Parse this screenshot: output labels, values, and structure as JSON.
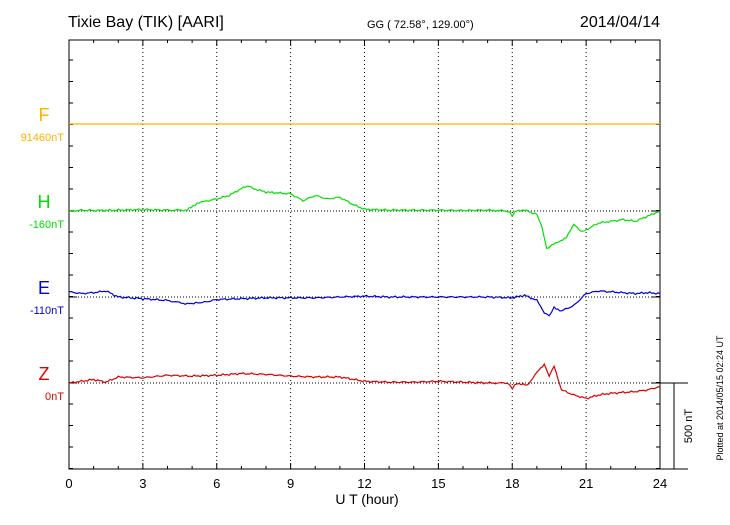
{
  "header": {
    "station": "Tixie Bay (TIK)  [AARI]",
    "coords": "GG ( 72.58°, 129.00°)",
    "date": "2014/04/14"
  },
  "footer": {
    "plotted_note": "Plotted at 2014/05/15 02:24 UT"
  },
  "scale_bar": {
    "label": "500 nT",
    "value_nT": 500
  },
  "colors": {
    "F": "#ffb000",
    "H": "#00e000",
    "E": "#0000dd",
    "Z": "#dd0000",
    "axis": "#000000",
    "grid": "#000000"
  },
  "chart_data": {
    "type": "line",
    "title": "Tixie Bay (TIK)  [AARI]",
    "xlabel": "U T (hour)",
    "ylabel": "",
    "xlim": [
      0,
      24
    ],
    "x_ticks": [
      "0",
      "3",
      "6",
      "9",
      "12",
      "15",
      "18",
      "21",
      "24"
    ],
    "grid": "dotted vertical every 3 h, dotted baselines per component",
    "units": "nT",
    "series": [
      {
        "name": "F",
        "baseline_label": "91460nT",
        "color": "#ffb000",
        "x": [
          0,
          24
        ],
        "y": [
          0,
          0
        ]
      },
      {
        "name": "H",
        "baseline_label": "-160nT",
        "color": "#00e000",
        "x": [
          0,
          0.5,
          1,
          2,
          3,
          4,
          4.8,
          5.2,
          5.5,
          6,
          6.5,
          7,
          7.3,
          7.5,
          8,
          8.5,
          9,
          9.5,
          10,
          10.5,
          11,
          11.5,
          12,
          13,
          14,
          15,
          16,
          17,
          17.8,
          18,
          18.2,
          18.5,
          19,
          19.2,
          19.4,
          19.6,
          19.9,
          20.2,
          20.5,
          20.8,
          21,
          21.5,
          22,
          22.5,
          23,
          23.5,
          24
        ],
        "y": [
          0,
          5,
          3,
          5,
          8,
          5,
          5,
          45,
          55,
          70,
          90,
          130,
          145,
          130,
          110,
          105,
          100,
          60,
          90,
          70,
          80,
          40,
          10,
          5,
          5,
          5,
          3,
          5,
          0,
          -25,
          5,
          5,
          -20,
          -90,
          -220,
          -200,
          -180,
          -150,
          -80,
          -120,
          -110,
          -70,
          -60,
          -50,
          -60,
          -30,
          0
        ]
      },
      {
        "name": "E",
        "baseline_label": "-110nT",
        "color": "#0000dd",
        "x": [
          0,
          0.5,
          1,
          1.5,
          2,
          3,
          4,
          4.8,
          5.5,
          6,
          7,
          8,
          9,
          10,
          11,
          12,
          13,
          14,
          15,
          16,
          17,
          18,
          18.5,
          19,
          19.3,
          19.5,
          19.7,
          20,
          20.5,
          21,
          21.5,
          22,
          22.5,
          23,
          23.5,
          24
        ],
        "y": [
          30,
          20,
          25,
          35,
          0,
          -10,
          -20,
          -40,
          -30,
          -15,
          -10,
          -5,
          -5,
          -5,
          0,
          5,
          0,
          0,
          0,
          0,
          0,
          -5,
          10,
          -20,
          -90,
          -110,
          -60,
          -80,
          -50,
          20,
          35,
          30,
          25,
          20,
          25,
          20
        ]
      },
      {
        "name": "Z",
        "baseline_label": "0nT",
        "color": "#dd0000",
        "x": [
          0,
          0.5,
          1,
          1.5,
          2,
          3,
          4,
          5,
          6,
          7,
          8,
          9,
          10,
          11,
          12,
          13,
          14,
          15,
          16,
          17,
          17.8,
          18,
          18.2,
          18.6,
          19,
          19.3,
          19.5,
          19.7,
          20,
          20.5,
          21,
          21.5,
          22,
          23,
          23.5,
          24
        ],
        "y": [
          0,
          10,
          20,
          5,
          35,
          30,
          45,
          40,
          45,
          55,
          50,
          40,
          35,
          35,
          10,
          5,
          5,
          10,
          5,
          0,
          0,
          -30,
          0,
          -15,
          60,
          110,
          40,
          100,
          -40,
          -70,
          -90,
          -70,
          -60,
          -50,
          -40,
          -20
        ]
      }
    ]
  }
}
